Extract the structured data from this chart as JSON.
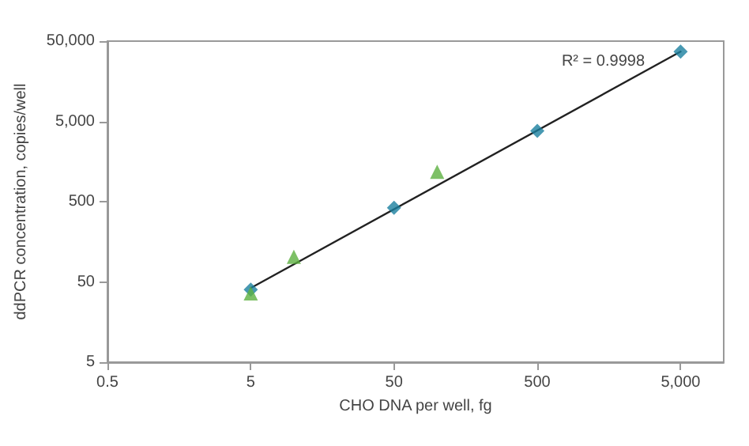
{
  "chart_data": {
    "type": "scatter",
    "xlabel": "CHO DNA per well, fg",
    "ylabel": "ddPCR concentration, copies/well",
    "log": "xy",
    "grid": false,
    "xlim": [
      0.5,
      10000
    ],
    "xticks": [
      0.5,
      5,
      50,
      500,
      {
        "value": 5000,
        "label": "5,000"
      }
    ],
    "ylim": [
      5,
      50000
    ],
    "yticks": [
      5,
      50,
      500,
      {
        "value": 5000,
        "label": "5,000"
      },
      {
        "value": 50000,
        "label": "50,000"
      }
    ],
    "series": [
      {
        "type": "line",
        "color": "#222222",
        "marker": "none",
        "x": [
          5,
          5000
        ],
        "values": [
          42,
          37000
        ]
      },
      {
        "color": "#1a7f9f",
        "marker": "diamond",
        "x": [
          5,
          50,
          500,
          5000
        ],
        "values": [
          40,
          420,
          3800,
          37000
        ]
      },
      {
        "color": "#5cb040",
        "marker": "triangle",
        "x": [
          5,
          10,
          100
        ],
        "values": [
          36,
          103,
          1180
        ]
      }
    ],
    "annotations": [
      "R² = 0.9998"
    ]
  }
}
